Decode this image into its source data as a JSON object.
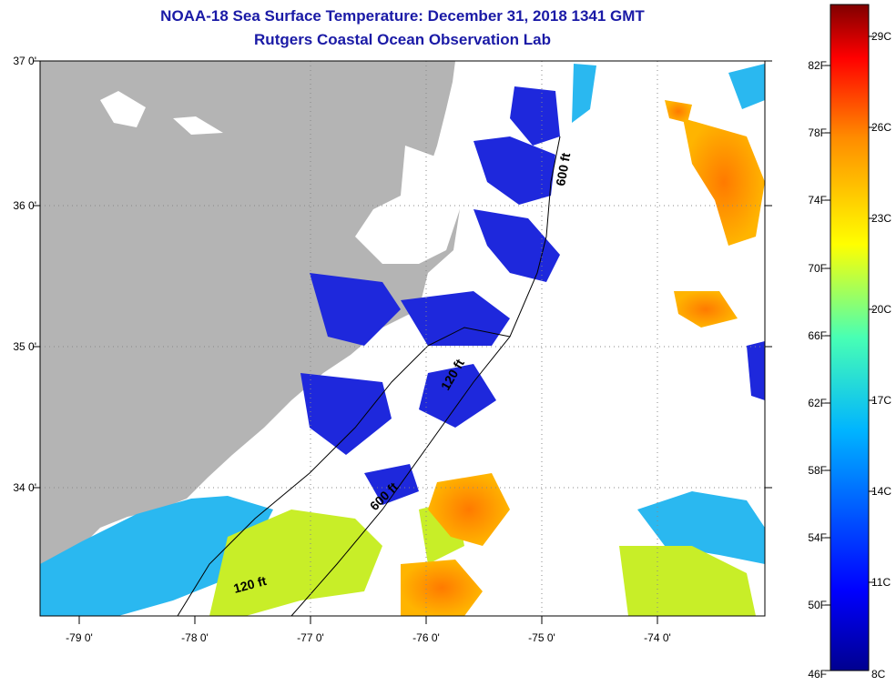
{
  "title": {
    "line1": "NOAA-18 Sea Surface Temperature:  December 31, 2018 1341 GMT",
    "line2": "Rutgers Coastal Ocean Observation Lab"
  },
  "map": {
    "lat_labels": [
      "37 0'",
      "36 0'",
      "35 0'",
      "34 0'"
    ],
    "lon_labels": [
      "-79 0'",
      "-78 0'",
      "-77 0'",
      "-76 0'",
      "-75 0'",
      "-74 0'"
    ],
    "lat_range": [
      33.1,
      37.0
    ],
    "lon_range": [
      -79.25,
      -73.0
    ],
    "contour_labels": [
      "600 ft",
      "120 ft",
      "600 ft",
      "120 ft"
    ],
    "colors": {
      "land": "#b4b4b4",
      "water_missing": "#ffffff",
      "grid": "#888888"
    }
  },
  "colorbar": {
    "fahrenheit_labels": [
      "82F",
      "78F",
      "74F",
      "70F",
      "66F",
      "62F",
      "58F",
      "54F",
      "50F",
      "46F"
    ],
    "celsius_labels": [
      "29C",
      "26C",
      "23C",
      "20C",
      "17C",
      "14C",
      "11C",
      "8C"
    ],
    "range_c": [
      8,
      30
    ]
  }
}
